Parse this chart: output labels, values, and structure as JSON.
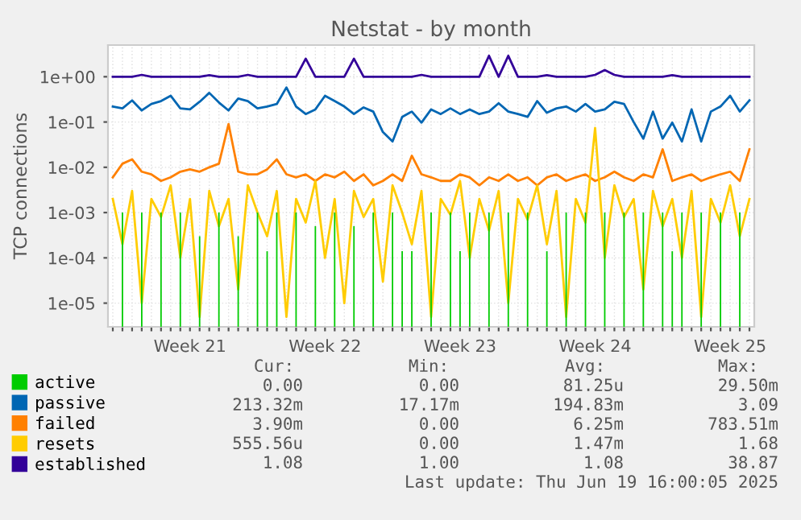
{
  "chart_data": {
    "type": "line",
    "title": "Netstat - by month",
    "ylabel": "TCP connections",
    "log": "y",
    "grid": true,
    "legend": "bottom",
    "marker": "none",
    "line_style": "solid",
    "ylim": [
      3e-06,
      5
    ],
    "yticks": [
      {
        "value": 1e-05,
        "label": "1e-05"
      },
      {
        "value": 0.0001,
        "label": "1e-04"
      },
      {
        "value": 0.001,
        "label": "1e-03"
      },
      {
        "value": 0.01,
        "label": "1e-02"
      },
      {
        "value": 0.1,
        "label": "1e-01"
      },
      {
        "value": 1,
        "label": "1e+00"
      }
    ],
    "categories": [
      null,
      null,
      null,
      null,
      null,
      null,
      null,
      null,
      "Week 21",
      null,
      null,
      null,
      null,
      null,
      null,
      null,
      null,
      null,
      null,
      null,
      null,
      null,
      "Week 22",
      null,
      null,
      null,
      null,
      null,
      null,
      null,
      null,
      null,
      null,
      null,
      null,
      null,
      "Week 23",
      null,
      null,
      null,
      null,
      null,
      null,
      null,
      null,
      null,
      null,
      null,
      null,
      null,
      "Week 24",
      null,
      null,
      null,
      null,
      null,
      null,
      null,
      null,
      null,
      null,
      null,
      null,
      null,
      "Week 25",
      null,
      null
    ],
    "series": [
      {
        "name": "active",
        "type": "bar",
        "color": "#00cc00",
        "values": [
          null,
          0.001,
          null,
          0.001,
          null,
          0.001,
          null,
          0.001,
          null,
          0.0003,
          null,
          0.001,
          null,
          0.0003,
          null,
          0.001,
          0.00014,
          0.001,
          null,
          0.001,
          null,
          0.0005,
          null,
          0.001,
          null,
          0.0005,
          null,
          0.001,
          null,
          0.001,
          0.00014,
          0.00014,
          null,
          0.001,
          null,
          0.001,
          0.00014,
          0.001,
          null,
          0.001,
          null,
          0.001,
          null,
          0.001,
          null,
          0.00014,
          null,
          0.001,
          null,
          0.001,
          null,
          0.001,
          null,
          0.001,
          null,
          0.001,
          null,
          0.001,
          0.00014,
          0.001,
          null,
          0.001,
          null,
          0.001,
          null,
          0.001,
          null
        ]
      },
      {
        "name": "passive",
        "color": "#0066b3",
        "values": [
          0.22,
          0.2,
          0.3,
          0.18,
          0.25,
          0.29,
          0.38,
          0.2,
          0.19,
          0.28,
          0.44,
          0.27,
          0.18,
          0.33,
          0.29,
          0.2,
          0.22,
          0.25,
          0.58,
          0.22,
          0.15,
          0.19,
          0.38,
          0.29,
          0.22,
          0.15,
          0.21,
          0.17,
          0.06,
          0.037,
          0.13,
          0.17,
          0.097,
          0.19,
          0.15,
          0.2,
          0.15,
          0.19,
          0.15,
          0.17,
          0.26,
          0.17,
          0.15,
          0.13,
          0.29,
          0.16,
          0.2,
          0.22,
          0.17,
          0.25,
          0.17,
          0.19,
          0.28,
          0.25,
          0.1,
          0.043,
          0.17,
          0.043,
          0.097,
          0.037,
          0.19,
          0.037,
          0.17,
          0.22,
          0.38,
          0.17,
          0.3
        ]
      },
      {
        "name": "failed",
        "color": "#ff8000",
        "values": [
          0.006,
          0.012,
          0.015,
          0.008,
          0.007,
          0.005,
          0.006,
          0.008,
          0.009,
          0.008,
          0.01,
          0.012,
          0.09,
          0.008,
          0.007,
          0.007,
          0.009,
          0.015,
          0.007,
          0.006,
          0.007,
          0.005,
          0.007,
          0.006,
          0.008,
          0.005,
          0.007,
          0.004,
          0.005,
          0.007,
          0.005,
          0.018,
          0.007,
          0.006,
          0.005,
          0.005,
          0.007,
          0.006,
          0.004,
          0.006,
          0.005,
          0.007,
          0.005,
          0.006,
          0.004,
          0.006,
          0.007,
          0.005,
          0.006,
          0.007,
          0.005,
          0.006,
          0.008,
          0.006,
          0.005,
          0.007,
          0.006,
          0.025,
          0.005,
          0.006,
          0.007,
          0.005,
          0.006,
          0.007,
          0.008,
          0.005,
          0.025
        ]
      },
      {
        "name": "resets",
        "color": "#ffcc00",
        "values": [
          0.002,
          0.0002,
          0.003,
          1e-05,
          0.002,
          0.0008,
          0.004,
          0.0001,
          0.002,
          5e-06,
          0.003,
          0.0005,
          0.002,
          2e-05,
          0.004,
          0.001,
          0.0003,
          0.003,
          5e-06,
          0.002,
          0.0006,
          0.005,
          0.0001,
          0.002,
          1e-05,
          0.003,
          0.0008,
          0.002,
          3e-05,
          0.004,
          0.001,
          0.0002,
          0.003,
          5e-06,
          0.002,
          0.0009,
          0.005,
          0.0001,
          0.002,
          0.0004,
          0.003,
          1e-05,
          0.002,
          0.0007,
          0.004,
          0.0002,
          0.003,
          5e-06,
          0.002,
          0.0006,
          0.074,
          0.0001,
          0.004,
          0.0008,
          0.002,
          2e-05,
          0.003,
          0.0005,
          0.002,
          0.0001,
          0.003,
          5e-06,
          0.002,
          0.0006,
          0.004,
          0.0003,
          0.002
        ]
      },
      {
        "name": "established",
        "color": "#330099",
        "values": [
          1.0,
          1.0,
          1.0,
          1.1,
          1.0,
          1.0,
          1.0,
          1.0,
          1.0,
          1.0,
          1.08,
          1.0,
          1.0,
          1.0,
          1.1,
          1.0,
          1.0,
          1.0,
          1.0,
          1.0,
          2.5,
          1.0,
          1.0,
          1.0,
          1.0,
          2.5,
          1.0,
          1.0,
          1.0,
          1.0,
          1.0,
          1.0,
          1.1,
          1.0,
          1.0,
          1.0,
          1.0,
          1.0,
          1.0,
          2.9,
          1.0,
          2.9,
          1.0,
          1.0,
          1.0,
          1.08,
          1.0,
          1.0,
          1.0,
          1.0,
          1.1,
          1.4,
          1.1,
          1.0,
          1.0,
          1.0,
          1.0,
          1.0,
          1.08,
          1.0,
          1.0,
          1.0,
          1.0,
          1.0,
          1.0,
          1.0,
          1.0
        ]
      }
    ],
    "annotations": [
      "Cur:",
      "Min:",
      "Avg:",
      "Max:",
      "0.00",
      "0.00",
      "81.25u",
      "29.50m",
      "213.32m",
      "17.17m",
      "194.83m",
      "3.09",
      "3.90m",
      "0.00",
      "6.25m",
      "783.51m",
      "555.56u",
      "0.00",
      "1.47m",
      "1.68",
      "1.08",
      "1.00",
      "1.08",
      "38.87",
      "Last update: Thu Jun 19 16:00:05 2025"
    ]
  }
}
